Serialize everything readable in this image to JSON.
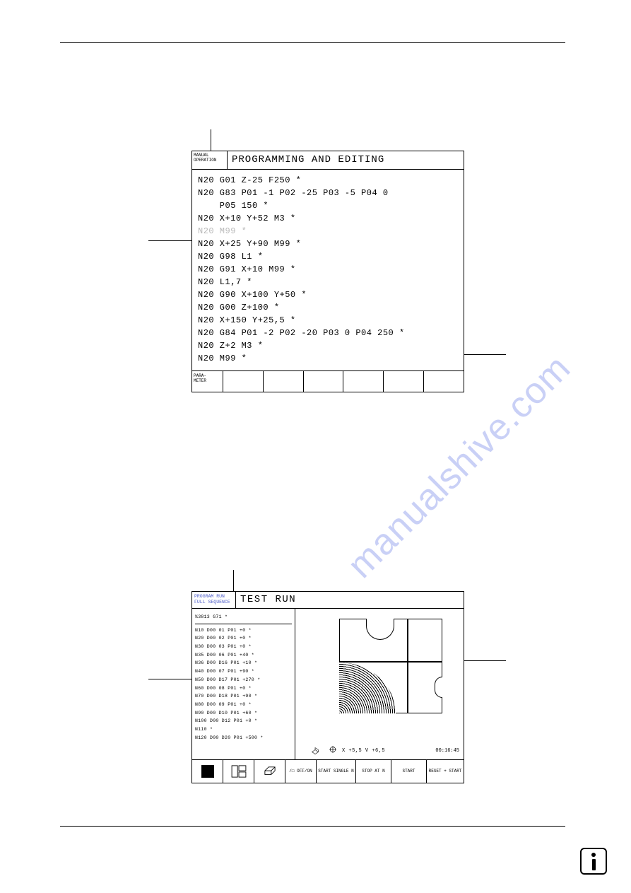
{
  "screen1": {
    "mode": "MANUAL\nOPERATION",
    "title": "PROGRAMMING AND EDITING",
    "lines": [
      "N20 G01 Z-25 F250 *",
      "N20 G83 P01 -1 P02 -25 P03 -5 P04 0",
      "    P05 150 *",
      "N20 X+10 Y+52 M3 *",
      "N20 M99 *",
      "N20 X+25 Y+90 M99 *",
      "N20 G98 L1 *",
      "N20 G91 X+10 M99 *",
      "N20 L1,7 *",
      "N20 G90 X+100 Y+50 *",
      "N20 G00 Z+100 *",
      "N20 X+150 Y+25,5 *",
      "N20 G84 P01 -2 P02 -20 P03 0 P04 250 *",
      "N20 Z+2 M3 *",
      "N20 M99 *"
    ],
    "dim_line_index": 4,
    "footer_label": "PARA-\nMETER"
  },
  "screen2": {
    "mode": "PROGRAM RUN\nFULL SEQUENCE",
    "title": "TEST RUN",
    "first_line": "%3813 G71 *",
    "lines": [
      "N10 D00 01 P01 +0 *",
      "N20 D00 02 P01 +0 *",
      "N30 D00 03 P01 +0 *",
      "N35 D00 06 P01 +40 *",
      "N36 D00 D16 P01 +10 *",
      "N40 D00 07 P01 +90 *",
      "N50 D00 D17 P01 +270 *",
      "N60 D00 08 P01 +0 *",
      "N70 D00 D18 P01 +90 *",
      "N80 D00 09 P01 +0 *",
      "N90 D00 D10 P01 +60 *",
      "N100 D00 D12 P01 +0 *",
      "N110 *",
      "N120 D00 D20 P01 +500 *"
    ],
    "coords": "X  +5,5  V  +6,5",
    "time": "00:16:45",
    "softkeys": {
      "offon": "/□\nOFF/ON",
      "start_single": "START\nSINGLE\nN",
      "stop_at": "STOP\nAT\nN",
      "start": "START",
      "reset_start": "RESET\n+\nSTART"
    }
  },
  "watermark": "manualshive.com",
  "colors": {
    "mode2_text": "#4a5ac8",
    "watermark": "rgba(100,120,230,0.35)",
    "dim": "#b8b8b8"
  }
}
